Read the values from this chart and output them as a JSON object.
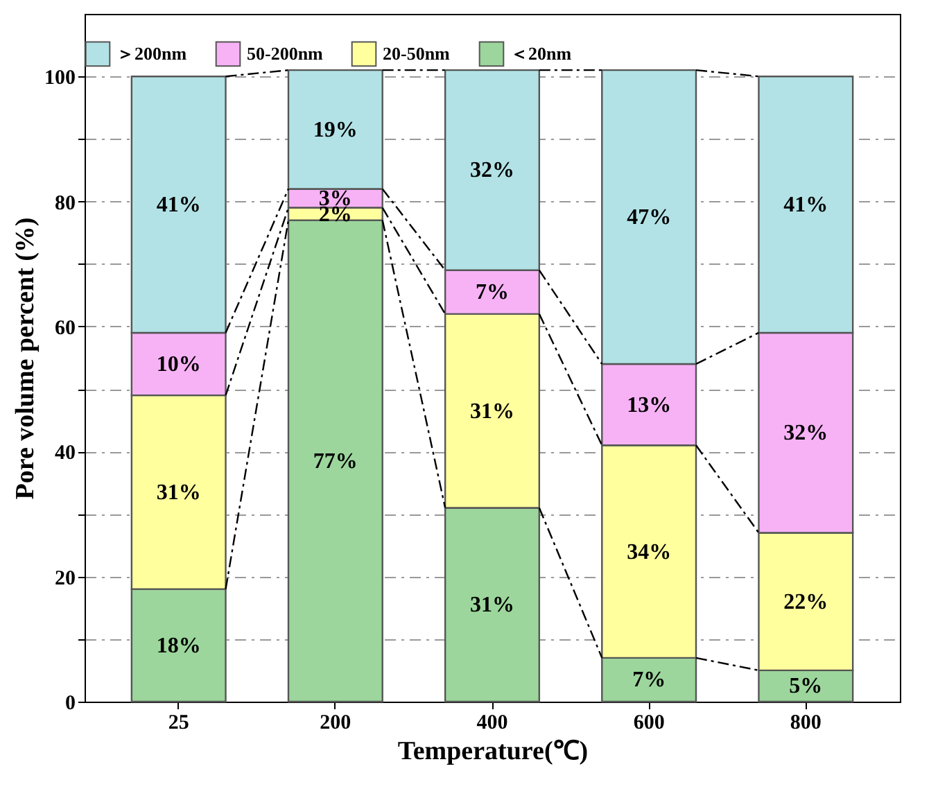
{
  "chart_data": {
    "type": "bar",
    "stacked": true,
    "xlabel": "Temperature(℃)",
    "ylabel": "Pore volume percent (%)",
    "categories": [
      "25",
      "200",
      "400",
      "600",
      "800"
    ],
    "series": [
      {
        "name": "＜20nm",
        "color": "#9cd69c",
        "values": [
          18,
          77,
          31,
          7,
          5
        ],
        "value_labels": [
          "18%",
          "77%",
          "31%",
          "7%",
          "5%"
        ]
      },
      {
        "name": "20-50nm",
        "color": "#ffff9e",
        "values": [
          31,
          2,
          31,
          34,
          22
        ],
        "value_labels": [
          "31%",
          "2%",
          "31%",
          "34%",
          "22%"
        ]
      },
      {
        "name": "50-200nm",
        "color": "#f7b2f5",
        "values": [
          10,
          3,
          7,
          13,
          32
        ],
        "value_labels": [
          "10%",
          "3%",
          "7%",
          "13%",
          "32%"
        ]
      },
      {
        "name": "＞200nm",
        "color": "#b2e2e6",
        "values": [
          41,
          19,
          32,
          47,
          41
        ],
        "value_labels": [
          "41%",
          "19%",
          "32%",
          "47%",
          "41%"
        ]
      }
    ],
    "ylim": [
      0,
      110
    ],
    "yticks": [
      0,
      {
        "value": 10,
        "label": null
      },
      20,
      {
        "value": 30,
        "label": null
      },
      40,
      {
        "value": 50,
        "label": null
      },
      60,
      {
        "value": 70,
        "label": null
      },
      80,
      {
        "value": 90,
        "label": null
      },
      100
    ],
    "grid": "y",
    "legend": "top"
  }
}
